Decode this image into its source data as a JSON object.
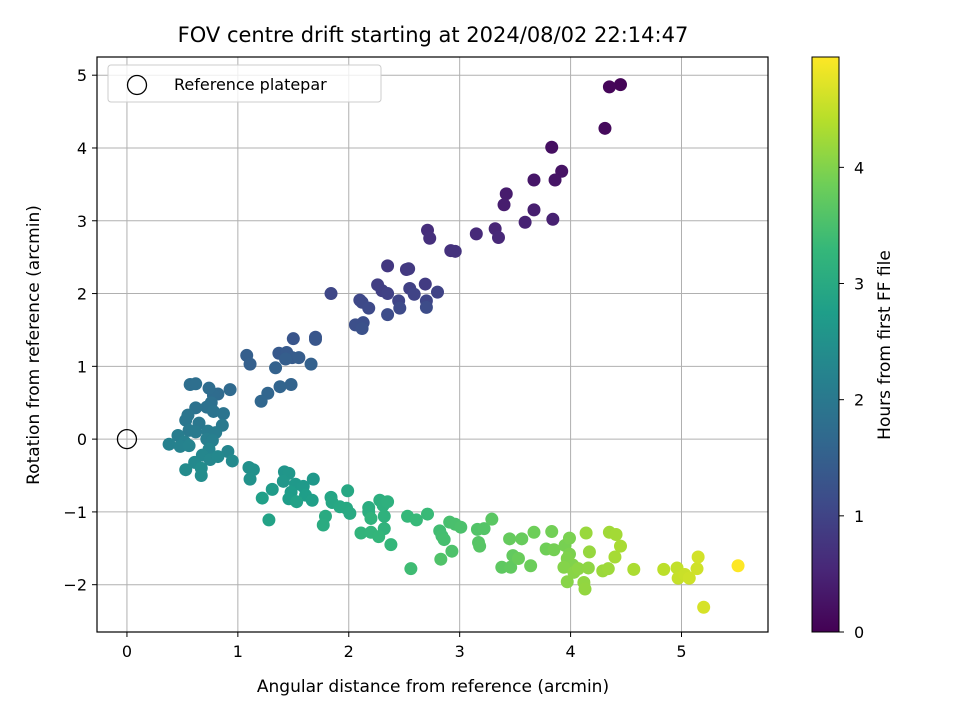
{
  "chart_data": {
    "type": "scatter",
    "title": "FOV centre drift starting at 2024/08/02 22:14:47",
    "xlabel": "Angular distance from reference (arcmin)",
    "ylabel": "Rotation from reference (arcmin)",
    "xlim": [
      -0.27,
      5.78
    ],
    "ylim": [
      -2.65,
      5.25
    ],
    "xticks": [
      0,
      1,
      2,
      3,
      4,
      5
    ],
    "yticks": [
      -2,
      -1,
      0,
      1,
      2,
      3,
      4,
      5
    ],
    "grid": true,
    "colormap": "viridis",
    "colorbar": {
      "label": "Hours from first FF file",
      "range": [
        0,
        4.95
      ],
      "ticks": [
        0,
        1,
        2,
        3,
        4
      ]
    },
    "legend": {
      "placement": "top-left",
      "entries": [
        "Reference platepar"
      ]
    },
    "reference_point": {
      "x": 0,
      "y": 0
    },
    "points": [
      {
        "x": 4.45,
        "y": 4.87,
        "c": 0.05
      },
      {
        "x": 4.35,
        "y": 4.84,
        "c": 0.07
      },
      {
        "x": 4.31,
        "y": 4.27,
        "c": 0.12
      },
      {
        "x": 3.83,
        "y": 4.01,
        "c": 0.2
      },
      {
        "x": 3.92,
        "y": 3.68,
        "c": 0.25
      },
      {
        "x": 3.86,
        "y": 3.56,
        "c": 0.28
      },
      {
        "x": 3.67,
        "y": 3.56,
        "c": 0.3
      },
      {
        "x": 3.42,
        "y": 3.37,
        "c": 0.38
      },
      {
        "x": 3.4,
        "y": 3.22,
        "c": 0.4
      },
      {
        "x": 3.67,
        "y": 3.15,
        "c": 0.42
      },
      {
        "x": 3.84,
        "y": 3.02,
        "c": 0.45
      },
      {
        "x": 3.59,
        "y": 2.98,
        "c": 0.48
      },
      {
        "x": 3.32,
        "y": 2.89,
        "c": 0.52
      },
      {
        "x": 3.35,
        "y": 2.77,
        "c": 0.55
      },
      {
        "x": 3.15,
        "y": 2.82,
        "c": 0.58
      },
      {
        "x": 2.71,
        "y": 2.87,
        "c": 0.65
      },
      {
        "x": 2.73,
        "y": 2.76,
        "c": 0.68
      },
      {
        "x": 2.92,
        "y": 2.59,
        "c": 0.7
      },
      {
        "x": 2.96,
        "y": 2.58,
        "c": 0.72
      },
      {
        "x": 2.35,
        "y": 2.38,
        "c": 0.8
      },
      {
        "x": 2.52,
        "y": 2.33,
        "c": 0.82
      },
      {
        "x": 2.54,
        "y": 2.34,
        "c": 0.84
      },
      {
        "x": 2.69,
        "y": 2.13,
        "c": 0.86
      },
      {
        "x": 2.26,
        "y": 2.12,
        "c": 0.9
      },
      {
        "x": 2.3,
        "y": 2.04,
        "c": 0.92
      },
      {
        "x": 2.55,
        "y": 2.07,
        "c": 0.94
      },
      {
        "x": 2.35,
        "y": 2.0,
        "c": 0.96
      },
      {
        "x": 2.8,
        "y": 2.02,
        "c": 0.98
      },
      {
        "x": 2.59,
        "y": 1.99,
        "c": 1.0
      },
      {
        "x": 2.45,
        "y": 1.9,
        "c": 1.02
      },
      {
        "x": 2.7,
        "y": 1.9,
        "c": 1.04
      },
      {
        "x": 2.1,
        "y": 1.91,
        "c": 1.06
      },
      {
        "x": 2.12,
        "y": 1.88,
        "c": 1.08
      },
      {
        "x": 1.84,
        "y": 2.0,
        "c": 1.05
      },
      {
        "x": 2.18,
        "y": 1.8,
        "c": 1.1
      },
      {
        "x": 2.46,
        "y": 1.8,
        "c": 1.12
      },
      {
        "x": 2.7,
        "y": 1.81,
        "c": 1.14
      },
      {
        "x": 2.35,
        "y": 1.71,
        "c": 1.16
      },
      {
        "x": 2.13,
        "y": 1.6,
        "c": 1.18
      },
      {
        "x": 2.06,
        "y": 1.57,
        "c": 1.2
      },
      {
        "x": 2.12,
        "y": 1.52,
        "c": 1.22
      },
      {
        "x": 1.5,
        "y": 1.38,
        "c": 1.3
      },
      {
        "x": 1.7,
        "y": 1.4,
        "c": 1.28
      },
      {
        "x": 1.7,
        "y": 1.37,
        "c": 1.32
      },
      {
        "x": 1.37,
        "y": 1.18,
        "c": 1.38
      },
      {
        "x": 1.44,
        "y": 1.19,
        "c": 1.4
      },
      {
        "x": 1.49,
        "y": 1.12,
        "c": 1.42
      },
      {
        "x": 1.55,
        "y": 1.12,
        "c": 1.44
      },
      {
        "x": 1.43,
        "y": 1.1,
        "c": 1.46
      },
      {
        "x": 1.08,
        "y": 1.15,
        "c": 1.48
      },
      {
        "x": 1.11,
        "y": 1.03,
        "c": 1.5
      },
      {
        "x": 1.66,
        "y": 1.03,
        "c": 1.52
      },
      {
        "x": 1.34,
        "y": 0.98,
        "c": 1.54
      },
      {
        "x": 1.48,
        "y": 0.75,
        "c": 1.58
      },
      {
        "x": 1.38,
        "y": 0.72,
        "c": 1.6
      },
      {
        "x": 1.27,
        "y": 0.63,
        "c": 1.62
      },
      {
        "x": 1.21,
        "y": 0.52,
        "c": 1.64
      },
      {
        "x": 0.93,
        "y": 0.68,
        "c": 1.7
      },
      {
        "x": 0.82,
        "y": 0.62,
        "c": 1.72
      },
      {
        "x": 0.78,
        "y": 0.6,
        "c": 1.74
      },
      {
        "x": 0.74,
        "y": 0.7,
        "c": 1.76
      },
      {
        "x": 0.57,
        "y": 0.75,
        "c": 1.78
      },
      {
        "x": 0.62,
        "y": 0.76,
        "c": 1.8
      },
      {
        "x": 0.76,
        "y": 0.5,
        "c": 1.82
      },
      {
        "x": 0.72,
        "y": 0.44,
        "c": 1.84
      },
      {
        "x": 0.62,
        "y": 0.43,
        "c": 1.86
      },
      {
        "x": 0.78,
        "y": 0.38,
        "c": 1.88
      },
      {
        "x": 0.87,
        "y": 0.35,
        "c": 1.9
      },
      {
        "x": 0.55,
        "y": 0.33,
        "c": 1.92
      },
      {
        "x": 0.53,
        "y": 0.26,
        "c": 1.94
      },
      {
        "x": 0.65,
        "y": 0.22,
        "c": 1.96
      },
      {
        "x": 0.86,
        "y": 0.19,
        "c": 2.0
      },
      {
        "x": 0.56,
        "y": 0.12,
        "c": 2.02
      },
      {
        "x": 0.62,
        "y": 0.1,
        "c": 2.04
      },
      {
        "x": 0.73,
        "y": 0.11,
        "c": 2.06
      },
      {
        "x": 0.8,
        "y": 0.09,
        "c": 2.08
      },
      {
        "x": 0.46,
        "y": 0.05,
        "c": 2.1
      },
      {
        "x": 0.72,
        "y": 0.0,
        "c": 2.12
      },
      {
        "x": 0.77,
        "y": -0.02,
        "c": 2.14
      },
      {
        "x": 0.52,
        "y": -0.04,
        "c": 2.16
      },
      {
        "x": 0.38,
        "y": -0.07,
        "c": 2.18
      },
      {
        "x": 0.48,
        "y": -0.1,
        "c": 2.2
      },
      {
        "x": 0.56,
        "y": -0.09,
        "c": 2.22
      },
      {
        "x": 0.74,
        "y": -0.14,
        "c": 2.24
      },
      {
        "x": 0.91,
        "y": -0.17,
        "c": 2.26
      },
      {
        "x": 0.68,
        "y": -0.22,
        "c": 2.28
      },
      {
        "x": 0.75,
        "y": -0.28,
        "c": 2.3
      },
      {
        "x": 0.82,
        "y": -0.24,
        "c": 2.32
      },
      {
        "x": 0.61,
        "y": -0.32,
        "c": 2.34
      },
      {
        "x": 0.95,
        "y": -0.3,
        "c": 2.36
      },
      {
        "x": 0.53,
        "y": -0.42,
        "c": 2.38
      },
      {
        "x": 0.67,
        "y": -0.4,
        "c": 2.4
      },
      {
        "x": 0.67,
        "y": -0.5,
        "c": 2.42
      },
      {
        "x": 1.1,
        "y": -0.39,
        "c": 2.48
      },
      {
        "x": 1.14,
        "y": -0.42,
        "c": 2.5
      },
      {
        "x": 1.11,
        "y": -0.55,
        "c": 2.52
      },
      {
        "x": 1.42,
        "y": -0.45,
        "c": 2.58
      },
      {
        "x": 1.46,
        "y": -0.47,
        "c": 2.6
      },
      {
        "x": 1.41,
        "y": -0.58,
        "c": 2.62
      },
      {
        "x": 1.68,
        "y": -0.55,
        "c": 2.64
      },
      {
        "x": 1.52,
        "y": -0.62,
        "c": 2.66
      },
      {
        "x": 1.59,
        "y": -0.65,
        "c": 2.68
      },
      {
        "x": 1.31,
        "y": -0.69,
        "c": 2.7
      },
      {
        "x": 1.48,
        "y": -0.73,
        "c": 2.72
      },
      {
        "x": 1.46,
        "y": -0.82,
        "c": 2.74
      },
      {
        "x": 1.61,
        "y": -0.77,
        "c": 2.76
      },
      {
        "x": 1.67,
        "y": -0.84,
        "c": 2.78
      },
      {
        "x": 1.22,
        "y": -0.81,
        "c": 2.8
      },
      {
        "x": 1.53,
        "y": -0.86,
        "c": 2.82
      },
      {
        "x": 1.28,
        "y": -1.11,
        "c": 2.84
      },
      {
        "x": 1.84,
        "y": -0.8,
        "c": 2.9
      },
      {
        "x": 1.85,
        "y": -0.87,
        "c": 2.92
      },
      {
        "x": 1.99,
        "y": -0.71,
        "c": 2.94
      },
      {
        "x": 1.92,
        "y": -0.93,
        "c": 2.96
      },
      {
        "x": 1.98,
        "y": -0.95,
        "c": 2.98
      },
      {
        "x": 2.01,
        "y": -1.02,
        "c": 3.0
      },
      {
        "x": 1.79,
        "y": -1.06,
        "c": 3.02
      },
      {
        "x": 1.77,
        "y": -1.18,
        "c": 3.04
      },
      {
        "x": 2.18,
        "y": -0.94,
        "c": 3.06
      },
      {
        "x": 2.18,
        "y": -1.0,
        "c": 3.08
      },
      {
        "x": 2.28,
        "y": -0.84,
        "c": 3.1
      },
      {
        "x": 2.31,
        "y": -0.91,
        "c": 3.12
      },
      {
        "x": 2.35,
        "y": -0.86,
        "c": 3.14
      },
      {
        "x": 2.32,
        "y": -1.06,
        "c": 3.16
      },
      {
        "x": 2.2,
        "y": -1.09,
        "c": 3.18
      },
      {
        "x": 2.32,
        "y": -1.23,
        "c": 3.2
      },
      {
        "x": 2.11,
        "y": -1.29,
        "c": 3.22
      },
      {
        "x": 2.2,
        "y": -1.28,
        "c": 3.24
      },
      {
        "x": 2.27,
        "y": -1.34,
        "c": 3.26
      },
      {
        "x": 2.38,
        "y": -1.45,
        "c": 3.28
      },
      {
        "x": 2.53,
        "y": -1.06,
        "c": 3.3
      },
      {
        "x": 2.61,
        "y": -1.11,
        "c": 3.32
      },
      {
        "x": 2.71,
        "y": -1.03,
        "c": 3.34
      },
      {
        "x": 2.56,
        "y": -1.78,
        "c": 3.4
      },
      {
        "x": 2.82,
        "y": -1.26,
        "c": 3.42
      },
      {
        "x": 2.84,
        "y": -1.33,
        "c": 3.44
      },
      {
        "x": 2.86,
        "y": -1.38,
        "c": 3.46
      },
      {
        "x": 2.91,
        "y": -1.14,
        "c": 3.48
      },
      {
        "x": 2.96,
        "y": -1.17,
        "c": 3.5
      },
      {
        "x": 3.01,
        "y": -1.21,
        "c": 3.52
      },
      {
        "x": 2.93,
        "y": -1.54,
        "c": 3.54
      },
      {
        "x": 2.83,
        "y": -1.65,
        "c": 3.56
      },
      {
        "x": 3.16,
        "y": -1.24,
        "c": 3.58
      },
      {
        "x": 3.22,
        "y": -1.23,
        "c": 3.6
      },
      {
        "x": 3.17,
        "y": -1.42,
        "c": 3.62
      },
      {
        "x": 3.18,
        "y": -1.47,
        "c": 3.64
      },
      {
        "x": 3.29,
        "y": -1.1,
        "c": 3.66
      },
      {
        "x": 3.38,
        "y": -1.76,
        "c": 3.7
      },
      {
        "x": 3.46,
        "y": -1.76,
        "c": 3.72
      },
      {
        "x": 3.48,
        "y": -1.6,
        "c": 3.74
      },
      {
        "x": 3.45,
        "y": -1.37,
        "c": 3.76
      },
      {
        "x": 3.56,
        "y": -1.37,
        "c": 3.78
      },
      {
        "x": 3.53,
        "y": -1.64,
        "c": 3.8
      },
      {
        "x": 3.64,
        "y": -1.74,
        "c": 3.82
      },
      {
        "x": 3.67,
        "y": -1.28,
        "c": 3.84
      },
      {
        "x": 3.78,
        "y": -1.51,
        "c": 3.86
      },
      {
        "x": 3.83,
        "y": -1.27,
        "c": 3.88
      },
      {
        "x": 3.85,
        "y": -1.52,
        "c": 3.9
      },
      {
        "x": 3.95,
        "y": -1.46,
        "c": 3.92
      },
      {
        "x": 3.99,
        "y": -1.36,
        "c": 3.94
      },
      {
        "x": 3.99,
        "y": -1.58,
        "c": 3.96
      },
      {
        "x": 3.97,
        "y": -1.64,
        "c": 3.98
      },
      {
        "x": 4.02,
        "y": -1.73,
        "c": 4.0
      },
      {
        "x": 3.94,
        "y": -1.76,
        "c": 4.02
      },
      {
        "x": 3.97,
        "y": -1.96,
        "c": 4.04
      },
      {
        "x": 4.03,
        "y": -1.83,
        "c": 4.06
      },
      {
        "x": 4.07,
        "y": -1.78,
        "c": 4.08
      },
      {
        "x": 4.16,
        "y": -1.77,
        "c": 4.1
      },
      {
        "x": 4.12,
        "y": -1.97,
        "c": 4.12
      },
      {
        "x": 4.13,
        "y": -2.06,
        "c": 4.14
      },
      {
        "x": 4.17,
        "y": -1.55,
        "c": 4.16
      },
      {
        "x": 4.14,
        "y": -1.29,
        "c": 4.18
      },
      {
        "x": 4.29,
        "y": -1.81,
        "c": 4.2
      },
      {
        "x": 4.34,
        "y": -1.78,
        "c": 4.22
      },
      {
        "x": 4.35,
        "y": -1.28,
        "c": 4.24
      },
      {
        "x": 4.41,
        "y": -1.31,
        "c": 4.26
      },
      {
        "x": 4.4,
        "y": -1.62,
        "c": 4.28
      },
      {
        "x": 4.45,
        "y": -1.47,
        "c": 4.3
      },
      {
        "x": 4.57,
        "y": -1.79,
        "c": 4.32
      },
      {
        "x": 4.84,
        "y": -1.79,
        "c": 4.45
      },
      {
        "x": 4.96,
        "y": -1.77,
        "c": 4.5
      },
      {
        "x": 4.97,
        "y": -1.91,
        "c": 4.52
      },
      {
        "x": 5.03,
        "y": -1.86,
        "c": 4.55
      },
      {
        "x": 5.07,
        "y": -1.91,
        "c": 4.58
      },
      {
        "x": 5.14,
        "y": -1.78,
        "c": 4.6
      },
      {
        "x": 5.15,
        "y": -1.62,
        "c": 4.62
      },
      {
        "x": 5.2,
        "y": -2.31,
        "c": 4.65
      },
      {
        "x": 5.51,
        "y": -1.74,
        "c": 4.95
      }
    ]
  }
}
